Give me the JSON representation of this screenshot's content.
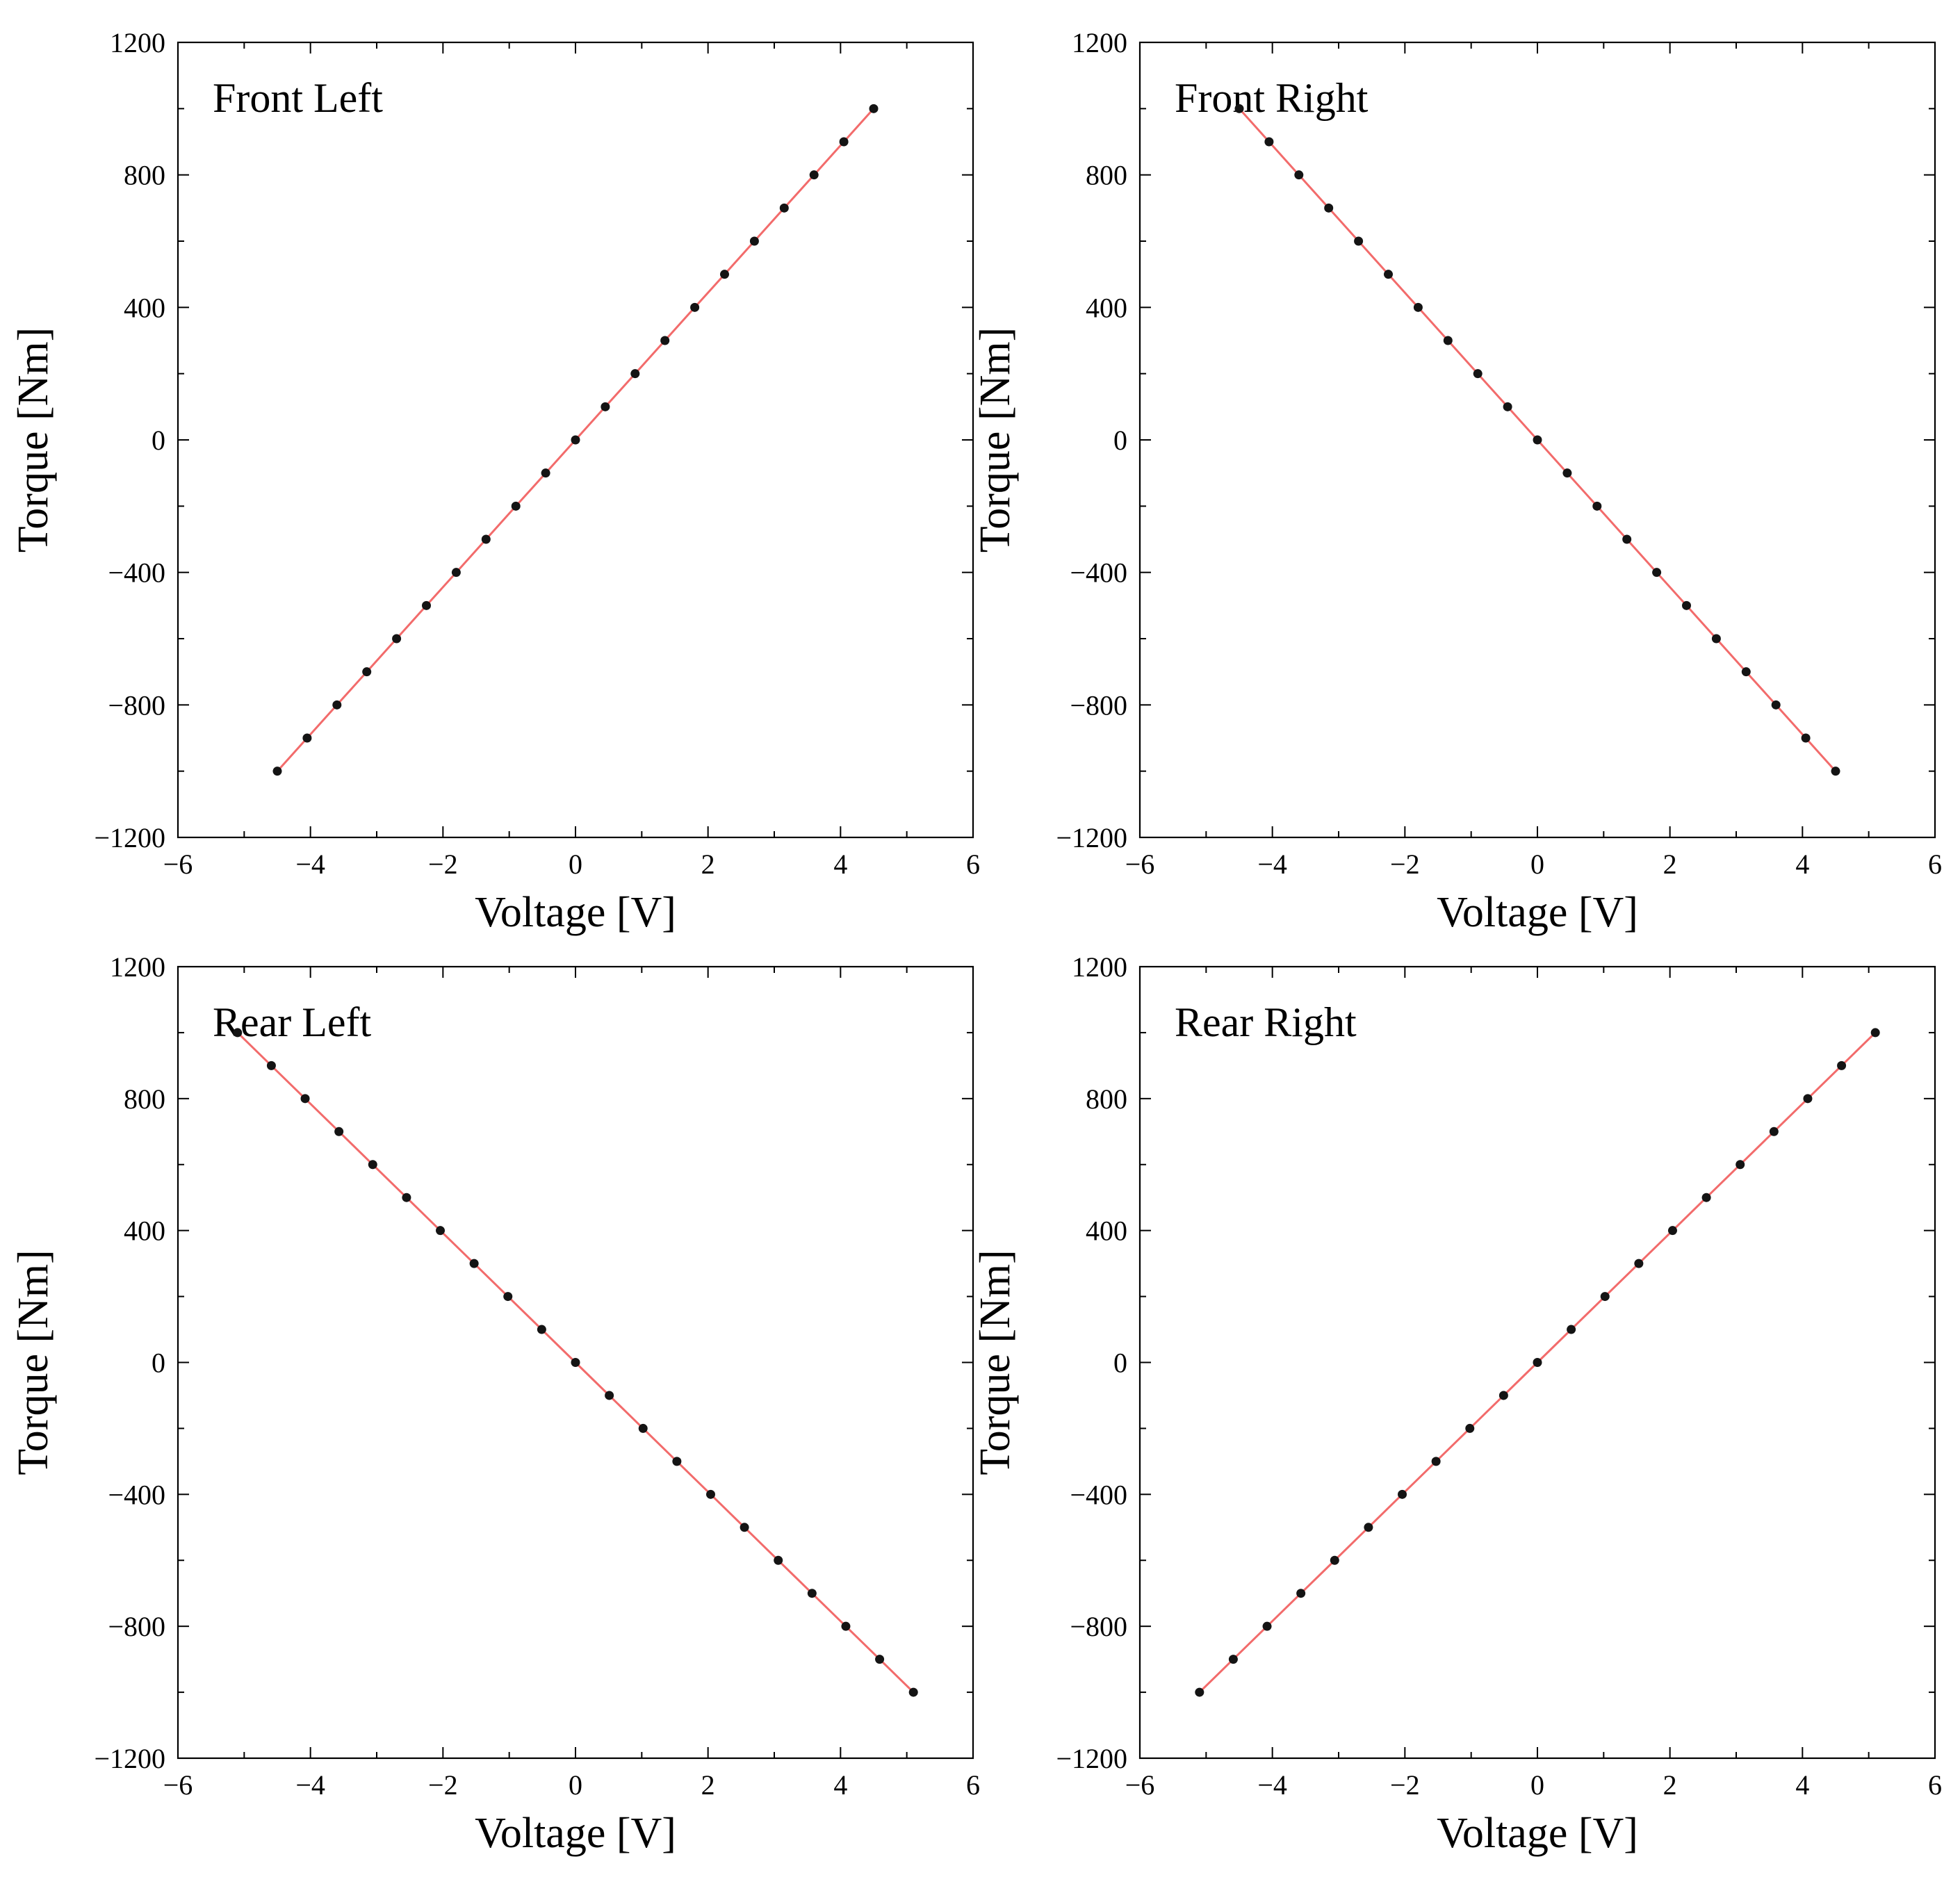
{
  "chart_data": [
    {
      "type": "line",
      "title": "Front Left",
      "xlabel": "Voltage [V]",
      "ylabel": "Torque [Nm]",
      "xlim": [
        -6,
        6
      ],
      "ylim": [
        -1200,
        1200
      ],
      "xticks": [
        "-6",
        "-4",
        "-2",
        "0",
        "2",
        "4",
        "6"
      ],
      "yticks": [
        "1200",
        "800",
        "400",
        "0",
        "-400",
        "-800",
        "-1200"
      ],
      "series": [
        {
          "name": "Front Left",
          "x": [
            -4.5,
            -4.05,
            -3.6,
            -3.15,
            -2.7,
            -2.25,
            -1.8,
            -1.35,
            -0.9,
            -0.45,
            0,
            0.45,
            0.9,
            1.35,
            1.8,
            2.25,
            2.7,
            3.15,
            3.6,
            4.05,
            4.5
          ],
          "y": [
            -1000,
            -900,
            -800,
            -700,
            -600,
            -500,
            -400,
            -300,
            -200,
            -100,
            0,
            100,
            200,
            300,
            400,
            500,
            600,
            700,
            800,
            900,
            1000
          ],
          "line_color": "#f26b6b",
          "marker_color": "#141414"
        }
      ]
    },
    {
      "type": "line",
      "title": "Front Right",
      "xlabel": "Voltage [V]",
      "ylabel": "Torque [Nm]",
      "xlim": [
        -6,
        6
      ],
      "ylim": [
        -1200,
        1200
      ],
      "xticks": [
        "-6",
        "-4",
        "-2",
        "0",
        "2",
        "4",
        "6"
      ],
      "yticks": [
        "1200",
        "800",
        "400",
        "0",
        "-400",
        "-800",
        "-1200"
      ],
      "series": [
        {
          "name": "Front Right",
          "x": [
            -4.5,
            -4.05,
            -3.6,
            -3.15,
            -2.7,
            -2.25,
            -1.8,
            -1.35,
            -0.9,
            -0.45,
            0,
            0.45,
            0.9,
            1.35,
            1.8,
            2.25,
            2.7,
            3.15,
            3.6,
            4.05,
            4.5
          ],
          "y": [
            1000,
            900,
            800,
            700,
            600,
            500,
            400,
            300,
            200,
            100,
            0,
            -100,
            -200,
            -300,
            -400,
            -500,
            -600,
            -700,
            -800,
            -900,
            -1000
          ],
          "line_color": "#f26b6b",
          "marker_color": "#141414"
        }
      ]
    },
    {
      "type": "line",
      "title": "Rear Left",
      "xlabel": "Voltage [V]",
      "ylabel": "Torque [Nm]",
      "xlim": [
        -6,
        6
      ],
      "ylim": [
        -1200,
        1200
      ],
      "xticks": [
        "-6",
        "-4",
        "-2",
        "0",
        "2",
        "4",
        "6"
      ],
      "yticks": [
        "1200",
        "800",
        "400",
        "0",
        "-400",
        "-800",
        "-1200"
      ],
      "series": [
        {
          "name": "Rear Left",
          "x": [
            -5.1,
            -4.59,
            -4.08,
            -3.57,
            -3.06,
            -2.55,
            -2.04,
            -1.53,
            -1.02,
            -0.51,
            0,
            0.51,
            1.02,
            1.53,
            2.04,
            2.55,
            3.06,
            3.57,
            4.08,
            4.59,
            5.1
          ],
          "y": [
            1000,
            900,
            800,
            700,
            600,
            500,
            400,
            300,
            200,
            100,
            0,
            -100,
            -200,
            -300,
            -400,
            -500,
            -600,
            -700,
            -800,
            -900,
            -1000
          ],
          "line_color": "#f26b6b",
          "marker_color": "#141414"
        }
      ]
    },
    {
      "type": "line",
      "title": "Rear Right",
      "xlabel": "Voltage [V]",
      "ylabel": "Torque [Nm]",
      "xlim": [
        -6,
        6
      ],
      "ylim": [
        -1200,
        1200
      ],
      "xticks": [
        "-6",
        "-4",
        "-2",
        "0",
        "2",
        "4",
        "6"
      ],
      "yticks": [
        "1200",
        "800",
        "400",
        "0",
        "-400",
        "-800",
        "-1200"
      ],
      "series": [
        {
          "name": "Rear Right",
          "x": [
            -5.1,
            -4.59,
            -4.08,
            -3.57,
            -3.06,
            -2.55,
            -2.04,
            -1.53,
            -1.02,
            -0.51,
            0,
            0.51,
            1.02,
            1.53,
            2.04,
            2.55,
            3.06,
            3.57,
            4.08,
            4.59,
            5.1
          ],
          "y": [
            -1000,
            -900,
            -800,
            -700,
            -600,
            -500,
            -400,
            -300,
            -200,
            -100,
            0,
            100,
            200,
            300,
            400,
            500,
            600,
            700,
            800,
            900,
            1000
          ],
          "line_color": "#f26b6b",
          "marker_color": "#141414"
        }
      ]
    }
  ]
}
